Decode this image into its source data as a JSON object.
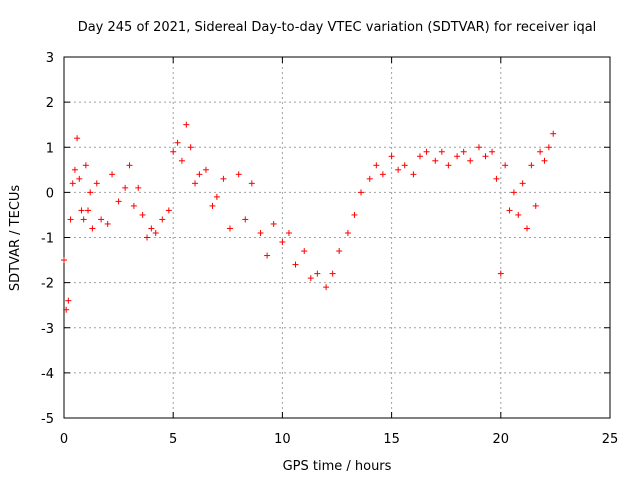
{
  "chart_data": {
    "type": "scatter",
    "title": "Day 245 of 2021, Sidereal Day-to-day VTEC variation (SDTVAR) for receiver iqal",
    "xlabel": "GPS time / hours",
    "ylabel": "SDTVAR / TECUs",
    "xlim": [
      0,
      25
    ],
    "ylim": [
      -5,
      3
    ],
    "xticks": [
      0,
      5,
      10,
      15,
      20,
      25
    ],
    "yticks": [
      -5,
      -4,
      -3,
      -2,
      -1,
      0,
      1,
      2,
      3
    ],
    "grid": true,
    "marker": "+",
    "color": "#ff0000",
    "series": [
      {
        "name": "SDTVAR",
        "x": [
          0.0,
          0.1,
          0.2,
          0.3,
          0.4,
          0.5,
          0.6,
          0.7,
          0.8,
          0.9,
          1.0,
          1.1,
          1.2,
          1.3,
          1.5,
          1.7,
          2.0,
          2.2,
          2.5,
          2.8,
          3.0,
          3.2,
          3.4,
          3.6,
          3.8,
          4.0,
          4.2,
          4.5,
          4.8,
          5.0,
          5.2,
          5.4,
          5.6,
          5.8,
          6.0,
          6.2,
          6.5,
          6.8,
          7.0,
          7.3,
          7.6,
          8.0,
          8.3,
          8.6,
          9.0,
          9.3,
          9.6,
          10.0,
          10.3,
          10.6,
          11.0,
          11.3,
          11.6,
          12.0,
          12.3,
          12.6,
          13.0,
          13.3,
          13.6,
          14.0,
          14.3,
          14.6,
          15.0,
          15.3,
          15.6,
          16.0,
          16.3,
          16.6,
          17.0,
          17.3,
          17.6,
          18.0,
          18.3,
          18.6,
          19.0,
          19.3,
          19.6,
          19.8,
          20.0,
          20.2,
          20.4,
          20.6,
          20.8,
          21.0,
          21.2,
          21.4,
          21.6,
          21.8,
          22.0,
          22.2,
          22.4
        ],
        "y": [
          -1.5,
          -2.6,
          -2.4,
          -0.6,
          0.2,
          0.5,
          1.2,
          0.3,
          -0.4,
          -0.6,
          0.6,
          -0.4,
          0.0,
          -0.8,
          0.2,
          -0.6,
          -0.7,
          0.4,
          -0.2,
          0.1,
          0.6,
          -0.3,
          0.1,
          -0.5,
          -1.0,
          -0.8,
          -0.9,
          -0.6,
          -0.4,
          0.9,
          1.1,
          0.7,
          1.5,
          1.0,
          0.2,
          0.4,
          0.5,
          -0.3,
          -0.1,
          0.3,
          -0.8,
          0.4,
          -0.6,
          0.2,
          -0.9,
          -1.4,
          -0.7,
          -1.1,
          -0.9,
          -1.6,
          -1.3,
          -1.9,
          -1.8,
          -2.1,
          -1.8,
          -1.3,
          -0.9,
          -0.5,
          0.0,
          0.3,
          0.6,
          0.4,
          0.8,
          0.5,
          0.6,
          0.4,
          0.8,
          0.9,
          0.7,
          0.9,
          0.6,
          0.8,
          0.9,
          0.7,
          1.0,
          0.8,
          0.9,
          0.3,
          -1.8,
          0.6,
          -0.4,
          0.0,
          -0.5,
          0.2,
          -0.8,
          0.6,
          -0.3,
          0.9,
          0.7,
          1.0,
          1.3
        ]
      }
    ]
  }
}
